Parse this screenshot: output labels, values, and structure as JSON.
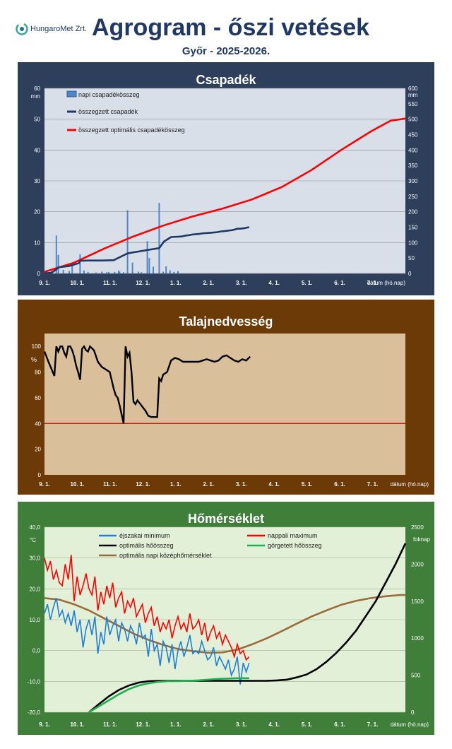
{
  "header": {
    "logo_text": "HungaroMet Zrt.",
    "title": "Agrogram - őszi vetések",
    "subtitle": "Győr - 2025-2026."
  },
  "colors": {
    "precip_frame": "#2e3f5c",
    "plot_bg_blue": "#d9dfe8",
    "soil_frame": "#6b3a06",
    "plot_bg_tan": "#d9c09a",
    "temp_frame": "#3f7f3a",
    "plot_bg_green": "#e3f0d8",
    "title_text": "#1f3864"
  },
  "x_ticks": [
    "9. 1.",
    "10. 1.",
    "11. 1.",
    "12. 1.",
    "1. 1.",
    "2. 1.",
    "3. 1.",
    "4. 1.",
    "5. 1.",
    "6. 1.",
    "7. 1."
  ],
  "x_unit_label": "dátum (hó.nap)",
  "chart_data": [
    {
      "type": "bar",
      "title": "Csapadék",
      "ylabel": "mm",
      "y2label": "mm",
      "ylim": [
        0,
        60
      ],
      "y2lim": [
        0,
        600
      ],
      "yticks": [
        "0",
        "10",
        "20",
        "30",
        "40",
        "50",
        "60"
      ],
      "y2ticks": [
        "0",
        "50",
        "100",
        "150",
        "200",
        "250",
        "300",
        "350",
        "400",
        "450",
        "500",
        "550",
        "600"
      ],
      "grid": true,
      "legend_position": "top-left",
      "series": [
        {
          "name": "napi csapadékösszeg",
          "kind": "bar",
          "axis": "left",
          "color": "#4f86c6",
          "days": [
            2,
            7,
            12,
            14,
            19,
            25,
            28,
            36,
            40,
            44,
            52,
            58,
            63,
            65,
            71,
            75,
            76,
            80,
            84,
            89,
            95,
            98,
            104,
            106,
            110,
            116,
            120,
            123,
            127,
            131,
            135
          ],
          "values": [
            0.5,
            0.8,
            12.3,
            6.0,
            1.2,
            0.8,
            2.5,
            6.2,
            1.0,
            0.5,
            0.3,
            0.6,
            0.4,
            0.5,
            0.5,
            1.0,
            0.6,
            0.4,
            20.5,
            3.5,
            0.6,
            0.4,
            10.5,
            5.0,
            2.2,
            22.9,
            0.6,
            2.3,
            1.0,
            0.5,
            0.8
          ]
        },
        {
          "name": "összegzett csapadék",
          "kind": "line",
          "axis": "right",
          "color": "#1f3864",
          "days": [
            0,
            2,
            7,
            12,
            14,
            19,
            25,
            28,
            35,
            36,
            44,
            52,
            58,
            70,
            84,
            89,
            95,
            104,
            110,
            116,
            121,
            128,
            135,
            139,
            143,
            146,
            149,
            152,
            156,
            160,
            164,
            168,
            172,
            175,
            178,
            181,
            184,
            186,
            189,
            192,
            195,
            198,
            201,
            204,
            207
          ],
          "values": [
            0,
            1,
            2,
            13,
            20,
            22,
            24,
            27,
            34,
            41,
            42,
            42,
            42,
            43,
            65,
            68,
            71,
            76,
            79,
            82,
            104,
            118,
            119,
            120,
            123,
            124,
            126,
            127,
            128,
            130,
            131,
            132,
            133,
            134,
            136,
            137,
            138,
            139,
            140,
            142,
            145,
            145,
            146,
            148,
            150
          ]
        },
        {
          "name": "összegzett optimális csapadékösszeg",
          "kind": "line",
          "axis": "right",
          "color": "#ff0000",
          "days": [
            0,
            30,
            60,
            90,
            120,
            150,
            180,
            210,
            240,
            270,
            300,
            330,
            350,
            365
          ],
          "values": [
            5,
            35,
            80,
            120,
            155,
            185,
            210,
            240,
            280,
            335,
            400,
            460,
            495,
            502
          ]
        }
      ]
    },
    {
      "type": "line",
      "title": "Talajnedvesség",
      "ylabel": "%",
      "ylim": [
        0,
        110
      ],
      "yticks": [
        "0",
        "20",
        "40",
        "60",
        "80",
        "100"
      ],
      "grid": false,
      "threshold": 40,
      "series": [
        {
          "name": "",
          "color": "#000000",
          "days": [
            0,
            4,
            10,
            12,
            14,
            16,
            18,
            20,
            22,
            24,
            26,
            28,
            30,
            32,
            34,
            36,
            38,
            40,
            42,
            44,
            46,
            50,
            54,
            58,
            62,
            66,
            70,
            72,
            74,
            76,
            78,
            80,
            82,
            84,
            86,
            88,
            90,
            92,
            94,
            96,
            98,
            100,
            102,
            105,
            108,
            110,
            112,
            114,
            116,
            118,
            120,
            124,
            128,
            132,
            136,
            140,
            144,
            148,
            152,
            156,
            160,
            164,
            168,
            172,
            176,
            180,
            184,
            188,
            192,
            196,
            200,
            204,
            208
          ],
          "values": [
            96,
            88,
            77,
            100,
            96,
            100,
            100,
            95,
            92,
            100,
            100,
            97,
            92,
            85,
            80,
            74,
            98,
            100,
            97,
            96,
            100,
            97,
            88,
            84,
            82,
            80,
            67,
            62,
            60,
            54,
            47,
            40,
            100,
            92,
            95,
            80,
            57,
            55,
            58,
            56,
            54,
            52,
            50,
            46,
            45,
            45,
            45,
            45,
            75,
            73,
            78,
            80,
            89,
            91,
            90,
            88,
            88,
            88,
            88,
            88,
            89,
            90,
            89,
            88,
            89,
            92,
            93,
            91,
            89,
            88,
            90,
            89,
            92
          ]
        }
      ]
    },
    {
      "type": "line",
      "title": "Hőmérséklet",
      "ylabel": "°C",
      "y2label": "foknap",
      "ylim": [
        -20,
        40
      ],
      "y2lim": [
        0,
        2500
      ],
      "yticks": [
        "-20,0",
        "-10,0",
        "0,0",
        "10,0",
        "20,0",
        "30,0",
        "40,0"
      ],
      "y2ticks": [
        "0",
        "500",
        "1000",
        "1500",
        "2000",
        "2500"
      ],
      "grid": true,
      "legend_position": "top",
      "series": [
        {
          "name": "éjszakai minimum",
          "axis": "left",
          "color": "#1f7fd6",
          "days": [
            0,
            3,
            6,
            9,
            12,
            15,
            18,
            21,
            24,
            27,
            30,
            33,
            36,
            39,
            42,
            45,
            48,
            51,
            54,
            57,
            60,
            63,
            66,
            69,
            72,
            75,
            78,
            81,
            84,
            87,
            90,
            93,
            96,
            99,
            102,
            105,
            108,
            111,
            114,
            117,
            120,
            123,
            126,
            129,
            132,
            135,
            138,
            141,
            144,
            147,
            150,
            153,
            156,
            159,
            162,
            165,
            168,
            171,
            174,
            177,
            180,
            183,
            186,
            189,
            192,
            195,
            198,
            201,
            204,
            207
          ],
          "values": [
            12,
            15,
            10,
            14,
            17,
            11,
            13,
            9,
            12,
            8,
            13,
            6,
            10,
            1,
            7,
            10,
            5,
            11,
            -1,
            6,
            2,
            11,
            5,
            8,
            10,
            3,
            9,
            7,
            3,
            8,
            6,
            2,
            9,
            4,
            5,
            -2,
            7,
            0,
            2,
            -5,
            3,
            1,
            -4,
            2,
            -6,
            0,
            3,
            -2,
            1,
            5,
            -1,
            0,
            -1,
            3,
            0,
            -3,
            -2,
            1,
            -5,
            -2,
            -4,
            -6,
            -3,
            -8,
            -6,
            -2,
            -11,
            -4,
            -7,
            -4
          ]
        },
        {
          "name": "nappali maximum",
          "axis": "left",
          "color": "#ff0000",
          "days": [
            0,
            3,
            6,
            9,
            12,
            15,
            18,
            21,
            24,
            27,
            30,
            33,
            36,
            39,
            42,
            45,
            48,
            51,
            54,
            57,
            60,
            63,
            66,
            69,
            72,
            75,
            78,
            81,
            84,
            87,
            90,
            93,
            96,
            99,
            102,
            105,
            108,
            111,
            114,
            117,
            120,
            123,
            126,
            129,
            132,
            135,
            138,
            141,
            144,
            147,
            150,
            153,
            156,
            159,
            162,
            165,
            168,
            171,
            174,
            177,
            180,
            183,
            186,
            189,
            192,
            195,
            198,
            201,
            204,
            207
          ],
          "values": [
            30,
            26,
            29,
            23,
            26,
            22,
            21,
            28,
            23,
            31,
            16,
            24,
            18,
            21,
            25,
            20,
            18,
            24,
            13,
            19,
            15,
            21,
            17,
            22,
            14,
            17,
            19,
            12,
            16,
            14,
            17,
            11,
            13,
            15,
            9,
            12,
            14,
            8,
            11,
            6,
            9,
            7,
            10,
            4,
            8,
            11,
            7,
            9,
            6,
            12,
            7,
            8,
            10,
            5,
            9,
            3,
            6,
            8,
            4,
            6,
            2,
            5,
            3,
            1,
            -2,
            2,
            -1,
            0,
            -3,
            -2
          ]
        },
        {
          "name": "nappali maximum",
          "axis": "left",
          "color": "#ff0000",
          "hidden": true,
          "days": [],
          "values": []
        },
        {
          "name": "optimális hőösszeg",
          "axis": "right",
          "color": "#000000",
          "days": [
            45,
            55,
            65,
            75,
            85,
            95,
            105,
            115,
            125,
            135,
            145,
            155,
            165,
            175,
            185,
            195,
            205,
            215,
            225,
            235,
            245,
            255,
            265,
            275,
            285,
            295,
            305,
            315,
            325,
            335,
            345,
            355,
            365
          ],
          "values": [
            0,
            110,
            215,
            300,
            360,
            400,
            420,
            425,
            425,
            425,
            425,
            425,
            425,
            425,
            425,
            425,
            425,
            425,
            425,
            430,
            440,
            470,
            510,
            580,
            680,
            800,
            940,
            1100,
            1300,
            1500,
            1750,
            2000,
            2280
          ]
        },
        {
          "name": "görgetett hőösszeg",
          "axis": "right",
          "color": "#1fb050",
          "days": [
            45,
            55,
            65,
            75,
            85,
            95,
            105,
            115,
            125,
            135,
            145,
            155,
            165,
            175,
            185,
            195,
            207
          ],
          "values": [
            0,
            80,
            160,
            240,
            310,
            360,
            390,
            410,
            420,
            420,
            425,
            430,
            440,
            450,
            455,
            460,
            460
          ]
        },
        {
          "name": "optimális napi középhőmérséklet",
          "axis": "left",
          "color": "#9b6b3a",
          "days": [
            0,
            15,
            30,
            45,
            60,
            75,
            90,
            105,
            120,
            135,
            150,
            165,
            180,
            195,
            210,
            225,
            240,
            255,
            270,
            285,
            300,
            315,
            330,
            345,
            360,
            365
          ],
          "values": [
            17,
            16.5,
            15,
            13,
            10.5,
            8,
            5.5,
            3.5,
            1.8,
            0.5,
            -0.2,
            -0.7,
            -0.6,
            0.3,
            2,
            4,
            6.3,
            8.7,
            11,
            13,
            14.8,
            16.1,
            17,
            17.6,
            18,
            18
          ]
        }
      ]
    }
  ]
}
